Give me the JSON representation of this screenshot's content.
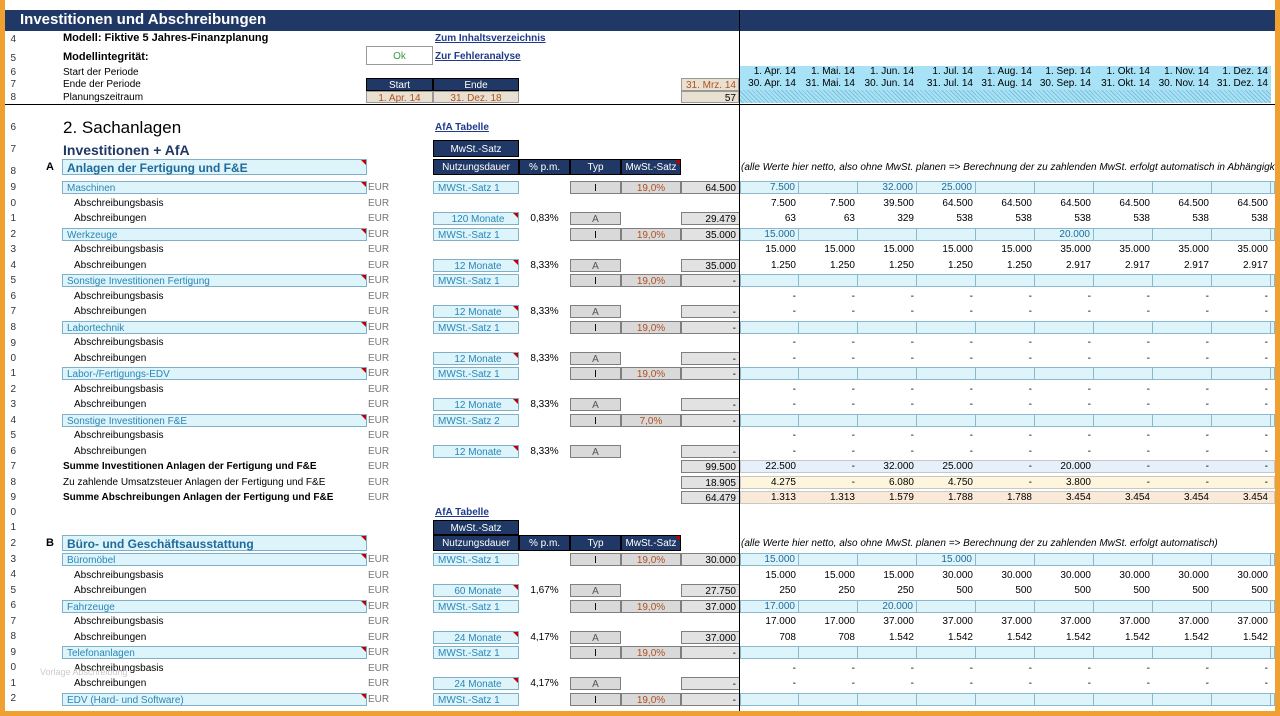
{
  "title": "Investitionen und Abschreibungen",
  "model_label": "Modell: Fiktive 5 Jahres-Finanzplanung",
  "integrity_label": "Modellintegrität:",
  "integrity_value": "Ok",
  "link_toc": "Zum Inhaltsverzeichnis",
  "link_errors": "Zur Fehleranalyse",
  "period_start_label": "Start der Periode",
  "period_end_label": "Ende der Periode",
  "planning_label": "Planungszeitraum",
  "start_hdr": "Start",
  "end_hdr": "Ende",
  "start_val": "1. Apr. 14",
  "end_val": "31. Dez. 18",
  "ref_date": "31. Mrz. 14",
  "ref_num": "57",
  "month_starts": [
    "1. Apr. 14",
    "1. Mai. 14",
    "1. Jun. 14",
    "1. Jul. 14",
    "1. Aug. 14",
    "1. Sep. 14",
    "1. Okt. 14",
    "1. Nov. 14",
    "1. Dez. 14"
  ],
  "month_ends": [
    "30. Apr. 14",
    "31. Mai. 14",
    "30. Jun. 14",
    "31. Jul. 14",
    "31. Aug. 14",
    "30. Sep. 14",
    "31. Okt. 14",
    "30. Nov. 14",
    "31. Dez. 14"
  ],
  "section_title": "2. Sachanlagen",
  "afa_link": "AfA Tabelle",
  "inv_title": "Investitionen + AfA",
  "mwst_hdr": "MwSt.-Satz",
  "col_nutz": "Nutzungsdauer",
  "col_pct": "% p.m.",
  "col_typ": "Typ",
  "col_mwst": "MwSt.-Satz",
  "note_a": "(alle Werte hier netto, also ohne MwSt. planen => Berechnung der zu zahlenden MwSt. erfolgt automatisch in Abhängigkeit d",
  "note_b": "(alle Werte hier netto, also ohne MwSt. planen => Berechnung der zu zahlenden MwSt. erfolgt automatisch)",
  "group_a_letter": "A",
  "group_a_title": "Anlagen der Fertigung und F&E",
  "group_b_letter": "B",
  "group_b_title": "Büro- und Geschäftsausstattung",
  "eur": "EUR",
  "sub_basis": "Abschreibungsbasis",
  "sub_afa": "Abschreibungen",
  "sum_inv_a": "Summe Investitionen Anlagen der Fertigung und F&E",
  "sum_vat_a": "Zu zahlende Umsatzsteuer Anlagen der Fertigung und F&E",
  "sum_afa_a": "Summe Abschreibungen Anlagen der Fertigung und F&E",
  "watermark": "Vorlage Abschreibung",
  "rows": [
    {
      "name": "Maschinen",
      "mwst": "MWSt.-Satz 1",
      "typ": "I",
      "rate": "19,0%",
      "total": "64.500",
      "nutz": "120 Monate",
      "pct": "0,83%",
      "typ2": "A",
      "afa_total": "29.479",
      "inv": [
        "7.500",
        "",
        "32.000",
        "25.000",
        "",
        "",
        "",
        "",
        ""
      ],
      "basis": [
        "7.500",
        "7.500",
        "39.500",
        "64.500",
        "64.500",
        "64.500",
        "64.500",
        "64.500",
        "64.500"
      ],
      "afa": [
        "63",
        "63",
        "329",
        "538",
        "538",
        "538",
        "538",
        "538",
        "538"
      ]
    },
    {
      "name": "Werkzeuge",
      "mwst": "MWSt.-Satz 1",
      "typ": "I",
      "rate": "19,0%",
      "total": "35.000",
      "nutz": "12 Monate",
      "pct": "8,33%",
      "typ2": "A",
      "afa_total": "35.000",
      "inv": [
        "15.000",
        "",
        "",
        "",
        "",
        "20.000",
        "",
        "",
        ""
      ],
      "basis": [
        "15.000",
        "15.000",
        "15.000",
        "15.000",
        "15.000",
        "35.000",
        "35.000",
        "35.000",
        "35.000"
      ],
      "afa": [
        "1.250",
        "1.250",
        "1.250",
        "1.250",
        "1.250",
        "2.917",
        "2.917",
        "2.917",
        "2.917"
      ]
    },
    {
      "name": "Sonstige Investitionen Fertigung",
      "mwst": "MWSt.-Satz 1",
      "typ": "I",
      "rate": "19,0%",
      "total": "-",
      "nutz": "12 Monate",
      "pct": "8,33%",
      "typ2": "A",
      "afa_total": "-",
      "inv": [
        "",
        "",
        "",
        "",
        "",
        "",
        "",
        "",
        ""
      ],
      "basis": [
        "-",
        "-",
        "-",
        "-",
        "-",
        "-",
        "-",
        "-",
        "-"
      ],
      "afa": [
        "-",
        "-",
        "-",
        "-",
        "-",
        "-",
        "-",
        "-",
        "-"
      ]
    },
    {
      "name": "Labortechnik",
      "mwst": "MWSt.-Satz 1",
      "typ": "I",
      "rate": "19,0%",
      "total": "-",
      "nutz": "12 Monate",
      "pct": "8,33%",
      "typ2": "A",
      "afa_total": "-",
      "inv": [
        "",
        "",
        "",
        "",
        "",
        "",
        "",
        "",
        ""
      ],
      "basis": [
        "-",
        "-",
        "-",
        "-",
        "-",
        "-",
        "-",
        "-",
        "-"
      ],
      "afa": [
        "-",
        "-",
        "-",
        "-",
        "-",
        "-",
        "-",
        "-",
        "-"
      ]
    },
    {
      "name": "Labor-/Fertigungs-EDV",
      "mwst": "MWSt.-Satz 1",
      "typ": "I",
      "rate": "19,0%",
      "total": "-",
      "nutz": "12 Monate",
      "pct": "8,33%",
      "typ2": "A",
      "afa_total": "-",
      "inv": [
        "",
        "",
        "",
        "",
        "",
        "",
        "",
        "",
        ""
      ],
      "basis": [
        "-",
        "-",
        "-",
        "-",
        "-",
        "-",
        "-",
        "-",
        "-"
      ],
      "afa": [
        "-",
        "-",
        "-",
        "-",
        "-",
        "-",
        "-",
        "-",
        "-"
      ]
    },
    {
      "name": "Sonstige Investitionen F&E",
      "mwst": "MWSt.-Satz 2",
      "typ": "I",
      "rate": "7,0%",
      "total": "-",
      "nutz": "12 Monate",
      "pct": "8,33%",
      "typ2": "A",
      "afa_total": "-",
      "inv": [
        "",
        "",
        "",
        "",
        "",
        "",
        "",
        "",
        ""
      ],
      "basis": [
        "-",
        "-",
        "-",
        "-",
        "-",
        "-",
        "-",
        "-",
        "-"
      ],
      "afa": [
        "-",
        "-",
        "-",
        "-",
        "-",
        "-",
        "-",
        "-",
        "-"
      ]
    }
  ],
  "sums_a": {
    "inv_total": "99.500",
    "vat_total": "18.905",
    "afa_total": "64.479",
    "inv": [
      "22.500",
      "-",
      "32.000",
      "25.000",
      "-",
      "20.000",
      "-",
      "-",
      "-"
    ],
    "vat": [
      "4.275",
      "-",
      "6.080",
      "4.750",
      "-",
      "3.800",
      "-",
      "-",
      "-"
    ],
    "afa": [
      "1.313",
      "1.313",
      "1.579",
      "1.788",
      "1.788",
      "3.454",
      "3.454",
      "3.454",
      "3.454"
    ]
  },
  "rows_b": [
    {
      "name": "Büromöbel",
      "mwst": "MWSt.-Satz 1",
      "typ": "I",
      "rate": "19,0%",
      "total": "30.000",
      "nutz": "60 Monate",
      "pct": "1,67%",
      "typ2": "A",
      "afa_total": "27.750",
      "inv": [
        "15.000",
        "",
        "",
        "15.000",
        "",
        "",
        "",
        "",
        ""
      ],
      "basis": [
        "15.000",
        "15.000",
        "15.000",
        "30.000",
        "30.000",
        "30.000",
        "30.000",
        "30.000",
        "30.000"
      ],
      "afa": [
        "250",
        "250",
        "250",
        "500",
        "500",
        "500",
        "500",
        "500",
        "500"
      ]
    },
    {
      "name": "Fahrzeuge",
      "mwst": "MWSt.-Satz 1",
      "typ": "I",
      "rate": "19,0%",
      "total": "37.000",
      "nutz": "24 Monate",
      "pct": "4,17%",
      "typ2": "A",
      "afa_total": "37.000",
      "inv": [
        "17.000",
        "",
        "20.000",
        "",
        "",
        "",
        "",
        "",
        ""
      ],
      "basis": [
        "17.000",
        "17.000",
        "37.000",
        "37.000",
        "37.000",
        "37.000",
        "37.000",
        "37.000",
        "37.000"
      ],
      "afa": [
        "708",
        "708",
        "1.542",
        "1.542",
        "1.542",
        "1.542",
        "1.542",
        "1.542",
        "1.542"
      ]
    },
    {
      "name": "Telefonanlagen",
      "mwst": "MWSt.-Satz 1",
      "typ": "I",
      "rate": "19,0%",
      "total": "-",
      "nutz": "24 Monate",
      "pct": "4,17%",
      "typ2": "A",
      "afa_total": "-",
      "inv": [
        "",
        "",
        "",
        "",
        "",
        "",
        "",
        "",
        ""
      ],
      "basis": [
        "-",
        "-",
        "-",
        "-",
        "-",
        "-",
        "-",
        "-",
        "-"
      ],
      "afa": [
        "-",
        "-",
        "-",
        "-",
        "-",
        "-",
        "-",
        "-",
        "-"
      ]
    },
    {
      "name": "EDV (Hard- und Software)",
      "mwst": "MWSt.-Satz 1",
      "typ": "I",
      "rate": "19,0%",
      "total": "-",
      "nutz": "",
      "pct": "",
      "typ2": "",
      "afa_total": "",
      "inv": [
        "",
        "",
        "",
        "",
        "",
        "",
        "",
        "",
        ""
      ],
      "basis": [],
      "afa": []
    }
  ]
}
